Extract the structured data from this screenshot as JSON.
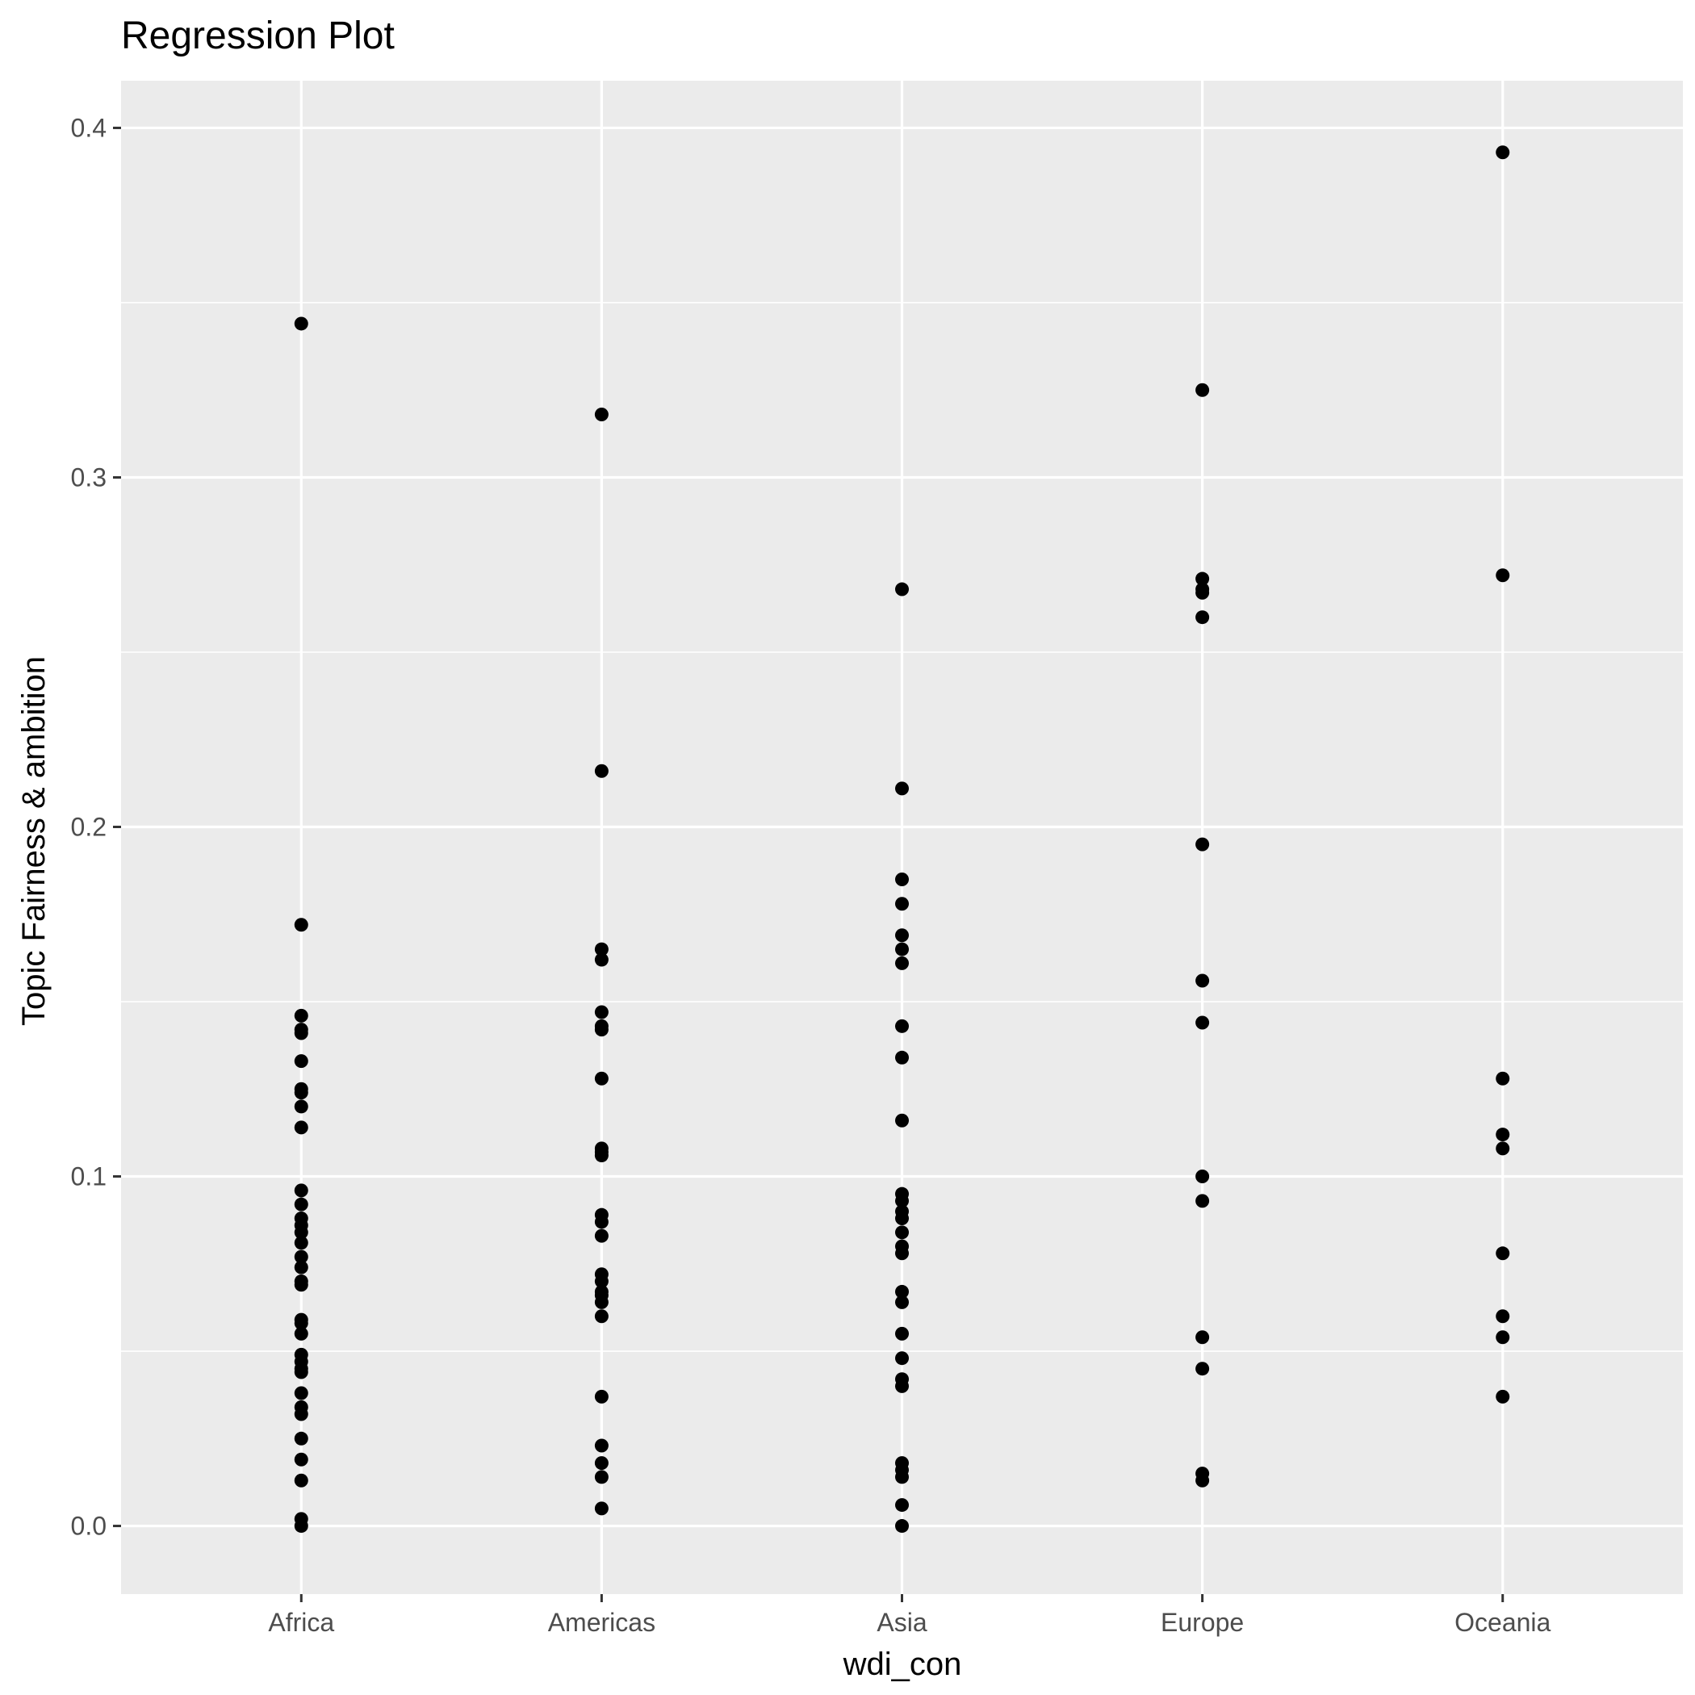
{
  "chart_data": {
    "type": "scatter",
    "title": "Regression Plot",
    "xlabel": "wdi_con",
    "ylabel": "Topic Fairness & ambition",
    "categories": [
      "Africa",
      "Americas",
      "Asia",
      "Europe",
      "Oceania"
    ],
    "ylim": [
      -0.0195,
      0.4135
    ],
    "y_ticks": [
      {
        "value": 0.0,
        "label": "0.0"
      },
      {
        "value": 0.1,
        "label": "0.1"
      },
      {
        "value": 0.2,
        "label": "0.2"
      },
      {
        "value": 0.3,
        "label": "0.3"
      },
      {
        "value": 0.4,
        "label": "0.4"
      }
    ],
    "y_minor_ticks": [
      0.05,
      0.15,
      0.25,
      0.35
    ],
    "grid": true,
    "background": "#ebebeb",
    "grid_color": "#ffffff",
    "point_color": "#000000",
    "points": [
      {
        "x": "Africa",
        "y": 0.344
      },
      {
        "x": "Africa",
        "y": 0.172
      },
      {
        "x": "Africa",
        "y": 0.146
      },
      {
        "x": "Africa",
        "y": 0.142
      },
      {
        "x": "Africa",
        "y": 0.141
      },
      {
        "x": "Africa",
        "y": 0.133
      },
      {
        "x": "Africa",
        "y": 0.125
      },
      {
        "x": "Africa",
        "y": 0.124
      },
      {
        "x": "Africa",
        "y": 0.12
      },
      {
        "x": "Africa",
        "y": 0.114
      },
      {
        "x": "Africa",
        "y": 0.096
      },
      {
        "x": "Africa",
        "y": 0.092
      },
      {
        "x": "Africa",
        "y": 0.088
      },
      {
        "x": "Africa",
        "y": 0.086
      },
      {
        "x": "Africa",
        "y": 0.084
      },
      {
        "x": "Africa",
        "y": 0.081
      },
      {
        "x": "Africa",
        "y": 0.077
      },
      {
        "x": "Africa",
        "y": 0.074
      },
      {
        "x": "Africa",
        "y": 0.07
      },
      {
        "x": "Africa",
        "y": 0.069
      },
      {
        "x": "Africa",
        "y": 0.059
      },
      {
        "x": "Africa",
        "y": 0.058
      },
      {
        "x": "Africa",
        "y": 0.055
      },
      {
        "x": "Africa",
        "y": 0.049
      },
      {
        "x": "Africa",
        "y": 0.047
      },
      {
        "x": "Africa",
        "y": 0.045
      },
      {
        "x": "Africa",
        "y": 0.044
      },
      {
        "x": "Africa",
        "y": 0.038
      },
      {
        "x": "Africa",
        "y": 0.034
      },
      {
        "x": "Africa",
        "y": 0.032
      },
      {
        "x": "Africa",
        "y": 0.025
      },
      {
        "x": "Africa",
        "y": 0.019
      },
      {
        "x": "Africa",
        "y": 0.013
      },
      {
        "x": "Africa",
        "y": 0.002
      },
      {
        "x": "Africa",
        "y": 0.0
      },
      {
        "x": "Americas",
        "y": 0.318
      },
      {
        "x": "Americas",
        "y": 0.216
      },
      {
        "x": "Americas",
        "y": 0.165
      },
      {
        "x": "Americas",
        "y": 0.162
      },
      {
        "x": "Americas",
        "y": 0.147
      },
      {
        "x": "Americas",
        "y": 0.143
      },
      {
        "x": "Americas",
        "y": 0.142
      },
      {
        "x": "Americas",
        "y": 0.128
      },
      {
        "x": "Americas",
        "y": 0.108
      },
      {
        "x": "Americas",
        "y": 0.107
      },
      {
        "x": "Americas",
        "y": 0.106
      },
      {
        "x": "Americas",
        "y": 0.089
      },
      {
        "x": "Americas",
        "y": 0.087
      },
      {
        "x": "Americas",
        "y": 0.083
      },
      {
        "x": "Americas",
        "y": 0.072
      },
      {
        "x": "Americas",
        "y": 0.07
      },
      {
        "x": "Americas",
        "y": 0.067
      },
      {
        "x": "Americas",
        "y": 0.066
      },
      {
        "x": "Americas",
        "y": 0.064
      },
      {
        "x": "Americas",
        "y": 0.06
      },
      {
        "x": "Americas",
        "y": 0.037
      },
      {
        "x": "Americas",
        "y": 0.023
      },
      {
        "x": "Americas",
        "y": 0.018
      },
      {
        "x": "Americas",
        "y": 0.014
      },
      {
        "x": "Americas",
        "y": 0.005
      },
      {
        "x": "Asia",
        "y": 0.268
      },
      {
        "x": "Asia",
        "y": 0.211
      },
      {
        "x": "Asia",
        "y": 0.185
      },
      {
        "x": "Asia",
        "y": 0.178
      },
      {
        "x": "Asia",
        "y": 0.169
      },
      {
        "x": "Asia",
        "y": 0.165
      },
      {
        "x": "Asia",
        "y": 0.161
      },
      {
        "x": "Asia",
        "y": 0.143
      },
      {
        "x": "Asia",
        "y": 0.134
      },
      {
        "x": "Asia",
        "y": 0.116
      },
      {
        "x": "Asia",
        "y": 0.095
      },
      {
        "x": "Asia",
        "y": 0.093
      },
      {
        "x": "Asia",
        "y": 0.09
      },
      {
        "x": "Asia",
        "y": 0.088
      },
      {
        "x": "Asia",
        "y": 0.084
      },
      {
        "x": "Asia",
        "y": 0.08
      },
      {
        "x": "Asia",
        "y": 0.078
      },
      {
        "x": "Asia",
        "y": 0.067
      },
      {
        "x": "Asia",
        "y": 0.064
      },
      {
        "x": "Asia",
        "y": 0.055
      },
      {
        "x": "Asia",
        "y": 0.048
      },
      {
        "x": "Asia",
        "y": 0.042
      },
      {
        "x": "Asia",
        "y": 0.04
      },
      {
        "x": "Asia",
        "y": 0.018
      },
      {
        "x": "Asia",
        "y": 0.016
      },
      {
        "x": "Asia",
        "y": 0.014
      },
      {
        "x": "Asia",
        "y": 0.006
      },
      {
        "x": "Asia",
        "y": 0.0
      },
      {
        "x": "Europe",
        "y": 0.325
      },
      {
        "x": "Europe",
        "y": 0.271
      },
      {
        "x": "Europe",
        "y": 0.268
      },
      {
        "x": "Europe",
        "y": 0.267
      },
      {
        "x": "Europe",
        "y": 0.26
      },
      {
        "x": "Europe",
        "y": 0.195
      },
      {
        "x": "Europe",
        "y": 0.156
      },
      {
        "x": "Europe",
        "y": 0.144
      },
      {
        "x": "Europe",
        "y": 0.1
      },
      {
        "x": "Europe",
        "y": 0.093
      },
      {
        "x": "Europe",
        "y": 0.054
      },
      {
        "x": "Europe",
        "y": 0.045
      },
      {
        "x": "Europe",
        "y": 0.015
      },
      {
        "x": "Europe",
        "y": 0.013
      },
      {
        "x": "Oceania",
        "y": 0.393
      },
      {
        "x": "Oceania",
        "y": 0.272
      },
      {
        "x": "Oceania",
        "y": 0.128
      },
      {
        "x": "Oceania",
        "y": 0.112
      },
      {
        "x": "Oceania",
        "y": 0.108
      },
      {
        "x": "Oceania",
        "y": 0.078
      },
      {
        "x": "Oceania",
        "y": 0.06
      },
      {
        "x": "Oceania",
        "y": 0.054
      },
      {
        "x": "Oceania",
        "y": 0.037
      }
    ]
  }
}
